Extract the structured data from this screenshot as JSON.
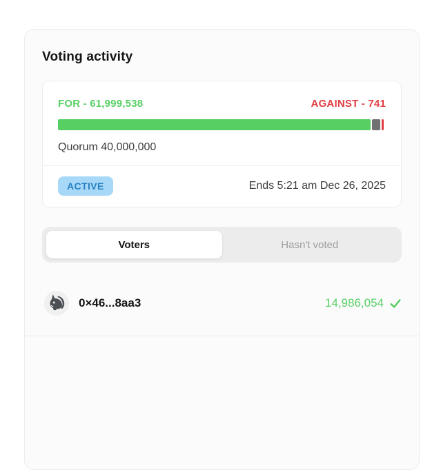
{
  "card": {
    "title": "Voting activity"
  },
  "vote_summary": {
    "for_label": "FOR - 61,999,538",
    "against_label": "AGAINST - 741",
    "quorum_label": "Quorum 40,000,000",
    "status_badge": "ACTIVE",
    "ends_text": "Ends 5:21 am Dec 26, 2025",
    "bar_segments": [
      {
        "name": "for",
        "color": "#57cf63",
        "width_pct": 95.4
      },
      {
        "name": "abstain",
        "color": "#717171",
        "width_pct": 2.5
      },
      {
        "name": "against",
        "color": "#e23d42",
        "width_pct": 0.7
      }
    ]
  },
  "tabs": {
    "voters": "Voters",
    "hasnt_voted": "Hasn't voted"
  },
  "voters": [
    {
      "address": "0×46...8aa3",
      "votes": "14,986,054",
      "vote_mark": "check",
      "avatar": "unicorn-avatar"
    }
  ],
  "colors": {
    "green": "#57cf63",
    "red": "#e23d42",
    "gray-seg": "#717171",
    "badge-bg": "#a7d8f8",
    "badge-text": "#2680c2",
    "text-dark": "#141414",
    "text-body": "#3d3d3d",
    "muted": "#9e9e9e"
  }
}
